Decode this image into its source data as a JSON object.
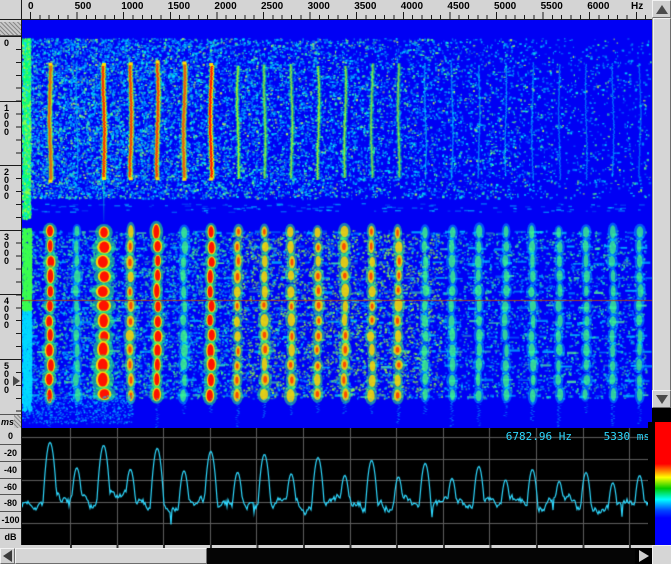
{
  "freq_ruler": {
    "unit": "Hz",
    "labels": [
      "0",
      "500",
      "1000",
      "1500",
      "2000",
      "2500",
      "3000",
      "3500",
      "4000",
      "4500",
      "5000",
      "5500",
      "6000"
    ]
  },
  "time_ruler": {
    "unit": "ms",
    "labels": [
      "0",
      "1000",
      "2000",
      "3000",
      "4000",
      "5000"
    ]
  },
  "db_ruler": {
    "labels": [
      "0",
      "-20",
      "-40",
      "-60",
      "-80",
      "-100",
      "dB"
    ]
  },
  "readout": {
    "frequency": "6782.96 Hz",
    "time": "5330 ms"
  },
  "colors": {
    "chrome": "#d4d4d4",
    "spectrogram_background": "#0000f4",
    "panel_background": "#000000",
    "gridline": "#5e5e5e",
    "trace": "#2ed9ff",
    "readout": "#2ed9ff",
    "time_marker_line": "#b04010",
    "colorbar_stops": [
      "#ff0000",
      "#ffff00",
      "#00cc00",
      "#00ffff",
      "#0000ff"
    ]
  },
  "spectrogram_content": {
    "visible_freq_range_hz": [
      0,
      6670
    ],
    "visible_time_range_ms": [
      0,
      6070
    ],
    "harmonic_spacing_hz": 288,
    "upper_band_time_ms": [
      400,
      2450
    ],
    "lower_band_time_ms": [
      3050,
      5450
    ],
    "cursor_time_ms": 5330
  },
  "spectrum_chart": {
    "type": "line",
    "ylabel": "dB",
    "y_ticks": [
      0,
      -20,
      -40,
      -60,
      -80,
      -100
    ],
    "x_gridline_spacing_hz": 500,
    "peak_spacing_hz": 288
  }
}
